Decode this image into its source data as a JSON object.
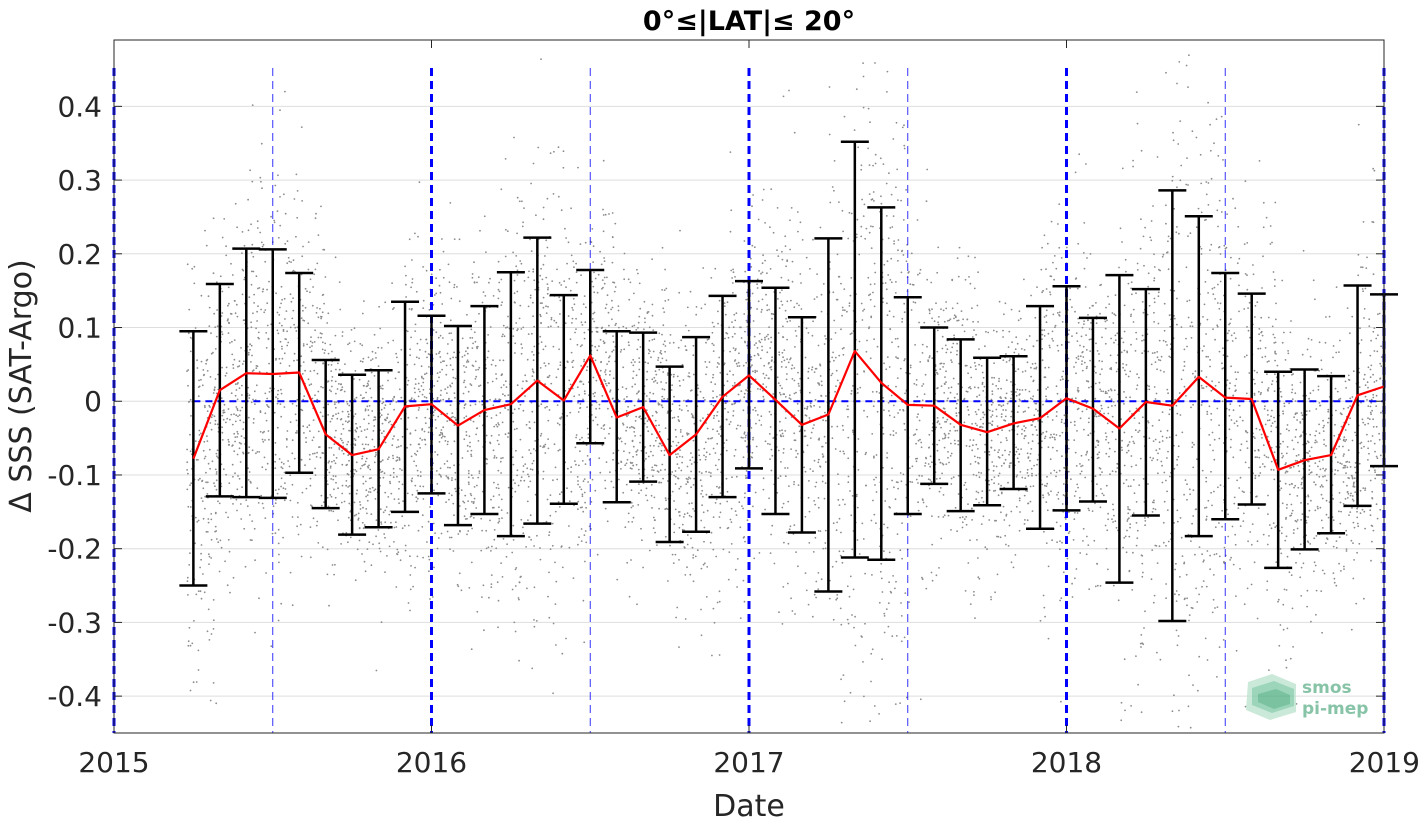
{
  "chart_data": {
    "type": "line",
    "title": "0°≤|LAT|≤ 20°",
    "xlabel": "Date",
    "ylabel": "Δ SSS (SAT-Argo)",
    "xlim": [
      2015.0,
      2019.0
    ],
    "ylim": [
      -0.45,
      0.49
    ],
    "x_ticks": [
      2015,
      2016,
      2017,
      2018,
      2019
    ],
    "x_tick_labels": [
      "2015",
      "2016",
      "2017",
      "2018",
      "2019"
    ],
    "y_ticks": [
      -0.4,
      -0.3,
      -0.2,
      -0.1,
      0,
      0.1,
      0.2,
      0.3,
      0.4
    ],
    "y_tick_labels": [
      "-0.4",
      "-0.3",
      "-0.2",
      "-0.1",
      "0",
      "0.1",
      "0.2",
      "0.3",
      "0.4"
    ],
    "grid": true,
    "reference_line": {
      "y": 0,
      "color": "#0000ff",
      "style": "dashed"
    },
    "year_lines": [
      2015,
      2016,
      2017,
      2018,
      2019
    ],
    "midyear_lines": [
      2015.5,
      2016.5,
      2017.5,
      2018.5
    ],
    "colors": {
      "mean": "#ff0000",
      "errorbar": "#000000",
      "scatter": "#8c8c8c",
      "guides": "#0000ff"
    },
    "series": [
      {
        "type": "errorbar",
        "x": [
          "2015-04",
          "2015-05",
          "2015-06",
          "2015-07",
          "2015-08",
          "2015-09",
          "2015-10",
          "2015-11",
          "2015-12",
          "2016-01",
          "2016-02",
          "2016-03",
          "2016-04",
          "2016-05",
          "2016-06",
          "2016-07",
          "2016-08",
          "2016-09",
          "2016-10",
          "2016-11",
          "2016-12",
          "2017-01",
          "2017-02",
          "2017-03",
          "2017-04",
          "2017-05",
          "2017-06",
          "2017-07",
          "2017-08",
          "2017-09",
          "2017-10",
          "2017-11",
          "2017-12",
          "2018-01",
          "2018-02",
          "2018-03",
          "2018-04",
          "2018-05",
          "2018-06",
          "2018-07",
          "2018-08",
          "2018-09",
          "2018-10",
          "2018-11",
          "2018-12",
          "2019-01"
        ],
        "mean": [
          -0.078,
          0.015,
          0.038,
          0.037,
          0.039,
          -0.045,
          -0.073,
          -0.065,
          -0.007,
          -0.004,
          -0.033,
          -0.012,
          -0.004,
          0.028,
          0.001,
          0.062,
          -0.022,
          -0.008,
          -0.073,
          -0.045,
          0.006,
          0.035,
          0.002,
          -0.032,
          -0.018,
          0.068,
          0.025,
          -0.005,
          -0.006,
          -0.032,
          -0.042,
          -0.03,
          -0.023,
          0.004,
          -0.01,
          -0.037,
          -0.001,
          -0.006,
          0.033,
          0.005,
          0.003,
          -0.093,
          -0.08,
          -0.073,
          0.008,
          0.02
        ],
        "upper": [
          0.095,
          0.159,
          0.207,
          0.206,
          0.174,
          0.056,
          0.036,
          0.042,
          0.135,
          0.116,
          0.102,
          0.129,
          0.175,
          0.222,
          0.144,
          0.178,
          0.095,
          0.093,
          0.047,
          0.087,
          0.143,
          0.163,
          0.154,
          0.114,
          0.221,
          0.352,
          0.263,
          0.141,
          0.1,
          0.084,
          0.059,
          0.061,
          0.129,
          0.156,
          0.113,
          0.171,
          0.152,
          0.286,
          0.251,
          0.174,
          0.146,
          0.04,
          0.043,
          0.034,
          0.157,
          0.145
        ],
        "lower": [
          -0.25,
          -0.129,
          -0.13,
          -0.131,
          -0.097,
          -0.145,
          -0.181,
          -0.171,
          -0.15,
          -0.125,
          -0.168,
          -0.153,
          -0.183,
          -0.166,
          -0.139,
          -0.057,
          -0.137,
          -0.109,
          -0.191,
          -0.177,
          -0.13,
          -0.091,
          -0.153,
          -0.178,
          -0.258,
          -0.212,
          -0.215,
          -0.153,
          -0.112,
          -0.149,
          -0.141,
          -0.119,
          -0.173,
          -0.148,
          -0.136,
          -0.246,
          -0.155,
          -0.298,
          -0.183,
          -0.16,
          -0.14,
          -0.226,
          -0.201,
          -0.179,
          -0.142,
          -0.088
        ]
      }
    ]
  },
  "logo": {
    "line1": "smos",
    "line2": "pi-mep"
  }
}
